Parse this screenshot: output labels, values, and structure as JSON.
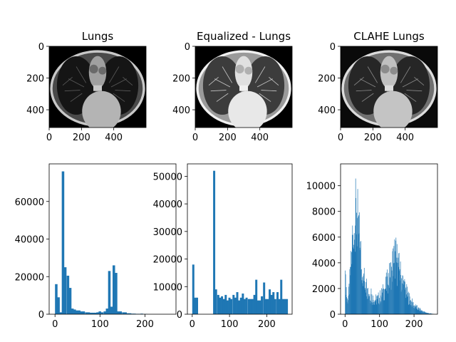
{
  "chart_data": [
    {
      "type": "image",
      "title": "Lungs",
      "variant": "original",
      "xlim": [
        0,
        600
      ],
      "ylim": [
        512,
        0
      ],
      "xticks": [
        0,
        200,
        400
      ],
      "yticks": [
        0,
        200,
        400
      ]
    },
    {
      "type": "image",
      "title": "Equalized - Lungs",
      "variant": "equalized",
      "xlim": [
        0,
        600
      ],
      "ylim": [
        512,
        0
      ],
      "xticks": [
        0,
        200,
        400
      ],
      "yticks": [
        0,
        200,
        400
      ]
    },
    {
      "type": "image",
      "title": "CLAHE Lungs",
      "variant": "clahe",
      "xlim": [
        0,
        600
      ],
      "ylim": [
        512,
        0
      ],
      "xticks": [
        0,
        200,
        400
      ],
      "yticks": [
        0,
        200,
        400
      ]
    },
    {
      "type": "bar",
      "title": "",
      "color": "#1f77b4",
      "bin_width": 5.12,
      "xlim": [
        -13,
        269
      ],
      "ylim": [
        0,
        80000
      ],
      "xticks": [
        0,
        100,
        200
      ],
      "yticks": [
        0,
        20000,
        40000,
        60000
      ],
      "bins": [
        {
          "x": 0,
          "v": 16000
        },
        {
          "x": 5,
          "v": 9000
        },
        {
          "x": 10,
          "v": 1000
        },
        {
          "x": 15,
          "v": 76000
        },
        {
          "x": 20,
          "v": 25000
        },
        {
          "x": 26,
          "v": 20500
        },
        {
          "x": 31,
          "v": 14000
        },
        {
          "x": 36,
          "v": 3000
        },
        {
          "x": 41,
          "v": 2500
        },
        {
          "x": 46,
          "v": 2000
        },
        {
          "x": 51,
          "v": 2000
        },
        {
          "x": 56,
          "v": 1500
        },
        {
          "x": 61,
          "v": 1500
        },
        {
          "x": 67,
          "v": 1000
        },
        {
          "x": 72,
          "v": 1000
        },
        {
          "x": 77,
          "v": 800
        },
        {
          "x": 82,
          "v": 800
        },
        {
          "x": 87,
          "v": 800
        },
        {
          "x": 92,
          "v": 1000
        },
        {
          "x": 97,
          "v": 1500
        },
        {
          "x": 102,
          "v": 1000
        },
        {
          "x": 108,
          "v": 1500
        },
        {
          "x": 113,
          "v": 3000
        },
        {
          "x": 118,
          "v": 23000
        },
        {
          "x": 123,
          "v": 4000
        },
        {
          "x": 128,
          "v": 26000
        },
        {
          "x": 133,
          "v": 22000
        },
        {
          "x": 138,
          "v": 1500
        },
        {
          "x": 143,
          "v": 1500
        },
        {
          "x": 149,
          "v": 1000
        },
        {
          "x": 154,
          "v": 1000
        },
        {
          "x": 159,
          "v": 500
        },
        {
          "x": 164,
          "v": 500
        },
        {
          "x": 169,
          "v": 300
        },
        {
          "x": 174,
          "v": 300
        },
        {
          "x": 179,
          "v": 200
        },
        {
          "x": 184,
          "v": 200
        },
        {
          "x": 190,
          "v": 300
        },
        {
          "x": 195,
          "v": 100
        },
        {
          "x": 200,
          "v": 100
        }
      ]
    },
    {
      "type": "bar",
      "title": "",
      "color": "#1f77b4",
      "bin_width": 5.12,
      "xlim": [
        -13,
        268
      ],
      "ylim": [
        0,
        54500
      ],
      "xticks": [
        0,
        100,
        200
      ],
      "yticks": [
        0,
        10000,
        20000,
        30000,
        40000,
        50000
      ],
      "bins": [
        {
          "x": 0,
          "v": 18000
        },
        {
          "x": 5,
          "v": 6000
        },
        {
          "x": 10,
          "v": 6000
        },
        {
          "x": 56,
          "v": 52000
        },
        {
          "x": 61,
          "v": 9000
        },
        {
          "x": 67,
          "v": 7000
        },
        {
          "x": 72,
          "v": 6000
        },
        {
          "x": 77,
          "v": 6500
        },
        {
          "x": 82,
          "v": 5500
        },
        {
          "x": 87,
          "v": 7000
        },
        {
          "x": 92,
          "v": 5000
        },
        {
          "x": 97,
          "v": 6000
        },
        {
          "x": 102,
          "v": 5500
        },
        {
          "x": 108,
          "v": 7000
        },
        {
          "x": 113,
          "v": 6000
        },
        {
          "x": 118,
          "v": 8000
        },
        {
          "x": 123,
          "v": 5000
        },
        {
          "x": 128,
          "v": 6000
        },
        {
          "x": 133,
          "v": 7500
        },
        {
          "x": 138,
          "v": 5500
        },
        {
          "x": 143,
          "v": 6000
        },
        {
          "x": 149,
          "v": 5500
        },
        {
          "x": 154,
          "v": 5500
        },
        {
          "x": 159,
          "v": 5500
        },
        {
          "x": 164,
          "v": 7000
        },
        {
          "x": 169,
          "v": 12500
        },
        {
          "x": 174,
          "v": 5000
        },
        {
          "x": 179,
          "v": 5000
        },
        {
          "x": 184,
          "v": 6500
        },
        {
          "x": 190,
          "v": 11500
        },
        {
          "x": 195,
          "v": 5500
        },
        {
          "x": 200,
          "v": 5500
        },
        {
          "x": 205,
          "v": 9000
        },
        {
          "x": 210,
          "v": 7000
        },
        {
          "x": 215,
          "v": 8000
        },
        {
          "x": 220,
          "v": 5500
        },
        {
          "x": 226,
          "v": 8000
        },
        {
          "x": 231,
          "v": 5500
        },
        {
          "x": 236,
          "v": 12500
        },
        {
          "x": 241,
          "v": 5500
        },
        {
          "x": 246,
          "v": 5500
        },
        {
          "x": 251,
          "v": 5500
        }
      ]
    },
    {
      "type": "bar",
      "title": "",
      "color": "#1f77b4",
      "bin_width": 1,
      "xlim": [
        -13,
        268
      ],
      "ylim": [
        0,
        11700
      ],
      "xticks": [
        0,
        100,
        200
      ],
      "yticks": [
        0,
        2000,
        4000,
        6000,
        8000,
        10000
      ],
      "anchors": [
        [
          0,
          2000
        ],
        [
          2,
          2500
        ],
        [
          5,
          1000
        ],
        [
          10,
          1500
        ],
        [
          15,
          3200
        ],
        [
          20,
          5000
        ],
        [
          25,
          6000
        ],
        [
          28,
          7000
        ],
        [
          32,
          7700
        ],
        [
          35,
          7000
        ],
        [
          40,
          6000
        ],
        [
          45,
          4500
        ],
        [
          50,
          3500
        ],
        [
          55,
          2700
        ],
        [
          60,
          2300
        ],
        [
          70,
          1600
        ],
        [
          80,
          1200
        ],
        [
          90,
          1100
        ],
        [
          100,
          1300
        ],
        [
          110,
          1700
        ],
        [
          120,
          2300
        ],
        [
          130,
          3000
        ],
        [
          140,
          4200
        ],
        [
          145,
          4500
        ],
        [
          150,
          4000
        ],
        [
          160,
          3000
        ],
        [
          170,
          2200
        ],
        [
          180,
          1500
        ],
        [
          190,
          1000
        ],
        [
          200,
          650
        ],
        [
          210,
          450
        ],
        [
          220,
          280
        ],
        [
          230,
          160
        ],
        [
          240,
          80
        ],
        [
          250,
          40
        ],
        [
          255,
          20
        ]
      ],
      "spikes": [
        [
          0,
          3400
        ],
        [
          13,
          3500
        ],
        [
          21,
          6900
        ],
        [
          24,
          5400
        ],
        [
          27,
          5800
        ],
        [
          29,
          6900
        ],
        [
          33,
          7900
        ],
        [
          37,
          7600
        ],
        [
          40,
          6300
        ],
        [
          43,
          5000
        ],
        [
          47,
          3500
        ],
        [
          52,
          3000
        ],
        [
          60,
          2500
        ],
        [
          64,
          2000
        ],
        [
          75,
          2000
        ],
        [
          110,
          2000
        ],
        [
          118,
          2000
        ],
        [
          124,
          2300
        ],
        [
          129,
          2900
        ],
        [
          135,
          3400
        ],
        [
          142,
          4000
        ],
        [
          145,
          4900
        ],
        [
          148,
          4400
        ],
        [
          152,
          4000
        ],
        [
          158,
          3500
        ],
        [
          165,
          2400
        ],
        [
          170,
          2300
        ]
      ]
    }
  ]
}
